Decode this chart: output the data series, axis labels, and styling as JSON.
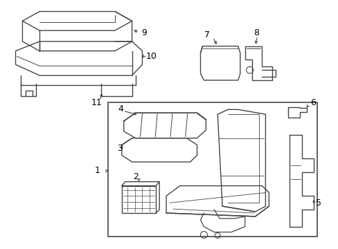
{
  "background_color": "#ffffff",
  "line_color": "#444444",
  "text_color": "#000000",
  "figsize": [
    4.89,
    3.6
  ],
  "dpi": 100,
  "label_fontsize": 9
}
